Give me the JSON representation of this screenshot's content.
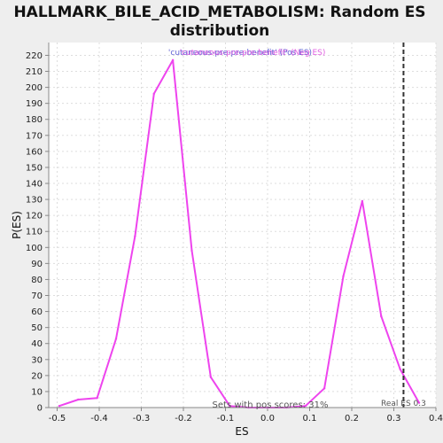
{
  "chart_data": {
    "type": "line",
    "title": "HALLMARK_BILE_ACID_METABOLISM: Random ES distribution",
    "title_lines": [
      "HALLMARK_BILE_ACID_METABOLISM: Random ES",
      "distribution"
    ],
    "xlabel": "ES",
    "ylabel": "P(ES)",
    "xlim": [
      -0.52,
      0.4
    ],
    "ylim": [
      0,
      228
    ],
    "x_ticks": [
      -0.5,
      -0.4,
      -0.3,
      -0.2,
      -0.1,
      0.0,
      0.1,
      0.2,
      0.3,
      0.4
    ],
    "x_tick_labels": [
      "-0.5",
      "-0.4",
      "-0.3",
      "-0.2",
      "-0.1",
      "0.0",
      "0.1",
      "0.2",
      "0.3",
      "0.4"
    ],
    "y_ticks": [
      0,
      10,
      20,
      30,
      40,
      50,
      60,
      70,
      80,
      90,
      100,
      110,
      120,
      130,
      140,
      150,
      160,
      170,
      180,
      190,
      200,
      210,
      220
    ],
    "grid": true,
    "series": [
      {
        "name": "'cutaneous-pre-pre-benefit' (Neg ES)",
        "color": "#ee44ee",
        "x": [
          -0.495,
          -0.45,
          -0.405,
          -0.36,
          -0.315,
          -0.27,
          -0.225,
          -0.18,
          -0.135,
          -0.09,
          -0.045,
          0.0,
          0.045,
          0.09,
          0.135,
          0.18,
          0.225,
          0.27,
          0.315,
          0.36
        ],
        "y": [
          1,
          5,
          6,
          43,
          107,
          196,
          217,
          98,
          19,
          1,
          0,
          0,
          0,
          1,
          12,
          82,
          129,
          57,
          24,
          3
        ]
      }
    ],
    "legend": {
      "placement": "top-center",
      "entries": [
        {
          "label": "'cutaneous-pre-pre-benefit' (Pos ES)",
          "color": "#4444cc"
        },
        {
          "label": "'cutaneous-pre-pre-benefit' (Neg ES)",
          "color": "#dd44dd"
        }
      ]
    },
    "real_es": {
      "x": 0.323,
      "label": "Real ES 0.3"
    },
    "annotation": "Sets with pos scores: 31%"
  }
}
